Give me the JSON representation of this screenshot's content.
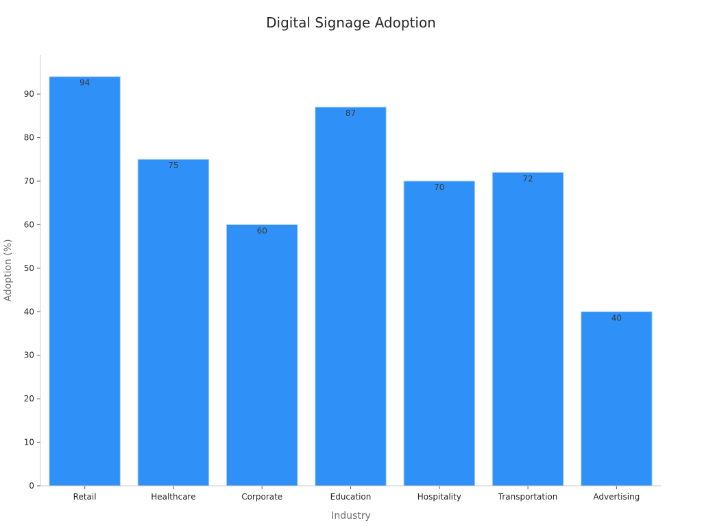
{
  "chart_data": {
    "type": "bar",
    "title": "Digital Signage Adoption",
    "xlabel": "Industry",
    "ylabel": "Adoption (%)",
    "categories": [
      "Retail",
      "Healthcare",
      "Corporate",
      "Education",
      "Hospitality",
      "Transportation",
      "Advertising"
    ],
    "values": [
      94,
      75,
      60,
      87,
      70,
      72,
      40
    ],
    "data_labels": [
      "94",
      "75",
      "60",
      "87",
      "70",
      "72",
      "40"
    ],
    "ylim": [
      0,
      99
    ],
    "yticks": [
      0,
      10,
      20,
      30,
      40,
      50,
      60,
      70,
      80,
      90
    ],
    "grid": false,
    "legend": "none",
    "colors": {
      "bar": "#2f91f8",
      "bar_edge": "#a9cdf6",
      "axis": "#cccccc",
      "text": "#262626"
    }
  }
}
